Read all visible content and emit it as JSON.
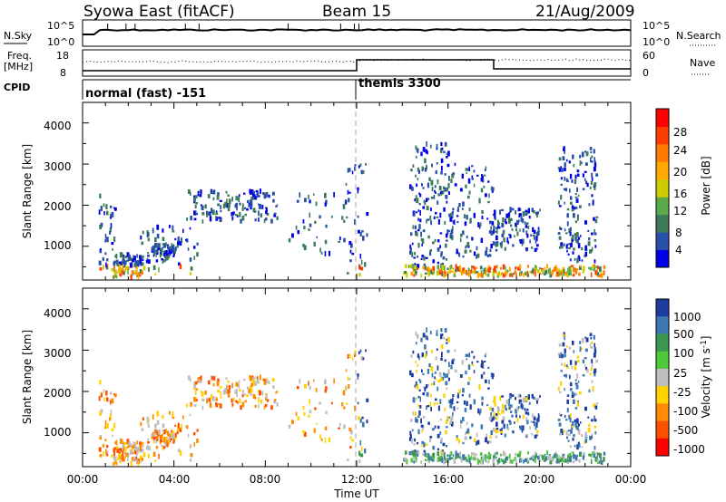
{
  "header": {
    "station": "Syowa East (fitACF)",
    "beam": "Beam 15",
    "date": "21/Aug/2009"
  },
  "nsky_panel": {
    "left_label": "N.Sky",
    "left_ticks": [
      "10^5",
      "10^0"
    ],
    "right_label": "N.Search",
    "right_ticks": [
      "10^5",
      "10^0"
    ]
  },
  "freq_panel": {
    "left_label_line1": "Freq.",
    "left_label_line2": "[MHz]",
    "left_ticks": [
      "18",
      "8"
    ],
    "right_label": "Nave",
    "right_ticks": [
      "60",
      "0"
    ]
  },
  "cpid_panel": {
    "label": "CPID",
    "modes": [
      "normal (fast) -151",
      "themis 3300"
    ]
  },
  "panels": {
    "ylabel": "Slant Range [km]",
    "yticks": [
      "1000",
      "2000",
      "3000",
      "4000"
    ],
    "xticks": [
      "00:00",
      "04:00",
      "08:00",
      "12:00",
      "16:00",
      "20:00",
      "00:00"
    ],
    "xlabel": "Time UT"
  },
  "power_colorbar": {
    "label": "Power [dB]",
    "ticks": [
      "4",
      "8",
      "12",
      "16",
      "20",
      "24",
      "28"
    ],
    "colors": [
      "#0000e6",
      "#2850a8",
      "#3c7a5a",
      "#5aaa4a",
      "#cccc00",
      "#ffaa00",
      "#ff7a00",
      "#ff3c00",
      "#ff0000"
    ]
  },
  "velocity_colorbar": {
    "label": "Velocity [m s^-1]",
    "ticks": [
      "1000",
      "500",
      "100",
      "25",
      "-25",
      "-100",
      "-500",
      "-1000"
    ],
    "colors": [
      "#1e3ca0",
      "#3c78b4",
      "#3c9650",
      "#50c83c",
      "#bebebe",
      "#ffd200",
      "#ff8c00",
      "#ff5000",
      "#ff0000"
    ]
  },
  "chart_data": {
    "type": "heatmap",
    "x_unit": "hours UT",
    "xlim": [
      0,
      24
    ],
    "ylim": [
      180,
      4500
    ],
    "boundary_time": 12,
    "scatter_regions": [
      {
        "t": [
          0.7,
          1.4
        ],
        "r": [
          400,
          2300
        ],
        "count": 40
      },
      {
        "t": [
          1.3,
          2.6
        ],
        "r": [
          250,
          800
        ],
        "count": 90
      },
      {
        "t": [
          3.0,
          4.0
        ],
        "r": [
          750,
          1050
        ],
        "count": 60
      },
      {
        "t": [
          2.5,
          5.0
        ],
        "r": [
          300,
          1500
        ],
        "count": 60
      },
      {
        "t": [
          4.5,
          8.5
        ],
        "r": [
          1600,
          2350
        ],
        "count": 140
      },
      {
        "t": [
          9.0,
          11.5
        ],
        "r": [
          800,
          2300
        ],
        "count": 40
      },
      {
        "t": [
          11.5,
          12.5
        ],
        "r": [
          300,
          3000
        ],
        "count": 40
      },
      {
        "t": [
          14.3,
          16.0
        ],
        "r": [
          300,
          3500
        ],
        "count": 160
      },
      {
        "t": [
          16.0,
          18.0
        ],
        "r": [
          700,
          3000
        ],
        "count": 110
      },
      {
        "t": [
          18.0,
          20.0
        ],
        "r": [
          900,
          1900
        ],
        "count": 110
      },
      {
        "t": [
          20.8,
          22.5
        ],
        "r": [
          600,
          3400
        ],
        "count": 150
      },
      {
        "t": [
          14.0,
          22.8
        ],
        "r": [
          280,
          520
        ],
        "count": 240
      }
    ]
  }
}
